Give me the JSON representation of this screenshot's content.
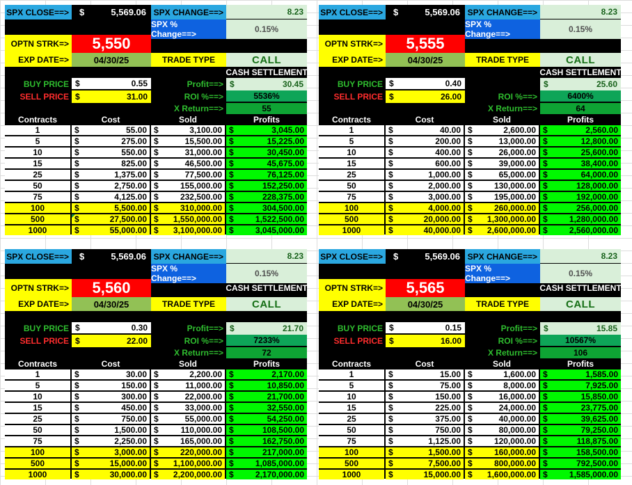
{
  "shared": {
    "dollar": "$",
    "spx_close_label": "SPX CLOSE==>",
    "spx_close_value": "5,569.06",
    "spx_change_label": "SPX CHANGE==>",
    "spx_change_value": "8.23",
    "spx_pct_label": "SPX % Change==>",
    "spx_pct_value": "0.15%",
    "optn_strk_label": "OPTN STRK=>",
    "exp_date_label": "EXP DATE=>",
    "exp_date": "04/30/25",
    "trade_type_label": "TRADE TYPE",
    "trade_type": "CALL",
    "cash_settlement": "CASH SETTLEMENT",
    "buy_price_label": "BUY PRICE",
    "sell_price_label": "SELL PRICE",
    "profit_label": "Profit==>",
    "roi_label": "ROI %==>",
    "xreturn_label": "X Return==>",
    "columns": [
      "Contracts",
      "Cost",
      "Sold",
      "Profits"
    ]
  },
  "colors": {
    "label_blue": "#2AA7E0",
    "pct_blue": "#0E62E0",
    "pale_green": "#D9EFD9",
    "strike_red": "#FF0000",
    "highlight_yellow": "#FFFF00",
    "date_olive": "#92C155",
    "roi_green": "#0EA558",
    "xreturn_green": "#0EA434",
    "profits_green": "#00F800",
    "buy_label_green": "#2FBE2F",
    "sell_label_red": "#FF2D2D"
  },
  "panels": [
    {
      "strike": "5,550",
      "buy_price": "0.55",
      "sell_price": "31.00",
      "profit": "30.45",
      "roi": "5536%",
      "x_return": "55",
      "rows": [
        {
          "n": "1",
          "cost": "55.00",
          "sold": "3,100.00",
          "profit": "3,045.00",
          "hl": false
        },
        {
          "n": "5",
          "cost": "275.00",
          "sold": "15,500.00",
          "profit": "15,225.00",
          "hl": false
        },
        {
          "n": "10",
          "cost": "550.00",
          "sold": "31,000.00",
          "profit": "30,450.00",
          "hl": false
        },
        {
          "n": "15",
          "cost": "825.00",
          "sold": "46,500.00",
          "profit": "45,675.00",
          "hl": false
        },
        {
          "n": "25",
          "cost": "1,375.00",
          "sold": "77,500.00",
          "profit": "76,125.00",
          "hl": false
        },
        {
          "n": "50",
          "cost": "2,750.00",
          "sold": "155,000.00",
          "profit": "152,250.00",
          "hl": false
        },
        {
          "n": "75",
          "cost": "4,125.00",
          "sold": "232,500.00",
          "profit": "228,375.00",
          "hl": false
        },
        {
          "n": "100",
          "cost": "5,500.00",
          "sold": "310,000.00",
          "profit": "304,500.00",
          "hl": true
        },
        {
          "n": "500",
          "cost": "27,500.00",
          "sold": "1,550,000.00",
          "profit": "1,522,500.00",
          "hl": true,
          "corner": true
        },
        {
          "n": "1000",
          "cost": "55,000.00",
          "sold": "3,100,000.00",
          "profit": "3,045,000.00",
          "hl": true
        }
      ]
    },
    {
      "strike": "5,555",
      "buy_price": "0.40",
      "sell_price": "26.00",
      "profit": "25.60",
      "roi": "6400%",
      "x_return": "64",
      "rows": [
        {
          "n": "1",
          "cost": "40.00",
          "sold": "2,600.00",
          "profit": "2,560.00",
          "hl": false
        },
        {
          "n": "5",
          "cost": "200.00",
          "sold": "13,000.00",
          "profit": "12,800.00",
          "hl": false
        },
        {
          "n": "10",
          "cost": "400.00",
          "sold": "26,000.00",
          "profit": "25,600.00",
          "hl": false
        },
        {
          "n": "15",
          "cost": "600.00",
          "sold": "39,000.00",
          "profit": "38,400.00",
          "hl": false
        },
        {
          "n": "25",
          "cost": "1,000.00",
          "sold": "65,000.00",
          "profit": "64,000.00",
          "hl": false
        },
        {
          "n": "50",
          "cost": "2,000.00",
          "sold": "130,000.00",
          "profit": "128,000.00",
          "hl": false
        },
        {
          "n": "75",
          "cost": "3,000.00",
          "sold": "195,000.00",
          "profit": "192,000.00",
          "hl": false
        },
        {
          "n": "100",
          "cost": "4,000.00",
          "sold": "260,000.00",
          "profit": "256,000.00",
          "hl": true
        },
        {
          "n": "500",
          "cost": "20,000.00",
          "sold": "1,300,000.00",
          "profit": "1,280,000.00",
          "hl": true
        },
        {
          "n": "1000",
          "cost": "40,000.00",
          "sold": "2,600,000.00",
          "profit": "2,560,000.00",
          "hl": true
        }
      ]
    },
    {
      "strike": "5,560",
      "buy_price": "0.30",
      "sell_price": "22.00",
      "profit": "21.70",
      "roi": "7233%",
      "x_return": "72",
      "rows": [
        {
          "n": "1",
          "cost": "30.00",
          "sold": "2,200.00",
          "profit": "2,170.00",
          "hl": false
        },
        {
          "n": "5",
          "cost": "150.00",
          "sold": "11,000.00",
          "profit": "10,850.00",
          "hl": false
        },
        {
          "n": "10",
          "cost": "300.00",
          "sold": "22,000.00",
          "profit": "21,700.00",
          "hl": false
        },
        {
          "n": "15",
          "cost": "450.00",
          "sold": "33,000.00",
          "profit": "32,550.00",
          "hl": false
        },
        {
          "n": "25",
          "cost": "750.00",
          "sold": "55,000.00",
          "profit": "54,250.00",
          "hl": false
        },
        {
          "n": "50",
          "cost": "1,500.00",
          "sold": "110,000.00",
          "profit": "108,500.00",
          "hl": false
        },
        {
          "n": "75",
          "cost": "2,250.00",
          "sold": "165,000.00",
          "profit": "162,750.00",
          "hl": false
        },
        {
          "n": "100",
          "cost": "3,000.00",
          "sold": "220,000.00",
          "profit": "217,000.00",
          "hl": true
        },
        {
          "n": "500",
          "cost": "15,000.00",
          "sold": "1,100,000.00",
          "profit": "1,085,000.00",
          "hl": true
        },
        {
          "n": "1000",
          "cost": "30,000.00",
          "sold": "2,200,000.00",
          "profit": "2,170,000.00",
          "hl": true
        }
      ]
    },
    {
      "strike": "5,565",
      "buy_price": "0.15",
      "sell_price": "16.00",
      "profit": "15.85",
      "roi": "10567%",
      "x_return": "106",
      "rows": [
        {
          "n": "1",
          "cost": "15.00",
          "sold": "1,600.00",
          "profit": "1,585.00",
          "hl": false
        },
        {
          "n": "5",
          "cost": "75.00",
          "sold": "8,000.00",
          "profit": "7,925.00",
          "hl": false
        },
        {
          "n": "10",
          "cost": "150.00",
          "sold": "16,000.00",
          "profit": "15,850.00",
          "hl": false
        },
        {
          "n": "15",
          "cost": "225.00",
          "sold": "24,000.00",
          "profit": "23,775.00",
          "hl": false
        },
        {
          "n": "25",
          "cost": "375.00",
          "sold": "40,000.00",
          "profit": "39,625.00",
          "hl": false
        },
        {
          "n": "50",
          "cost": "750.00",
          "sold": "80,000.00",
          "profit": "79,250.00",
          "hl": false
        },
        {
          "n": "75",
          "cost": "1,125.00",
          "sold": "120,000.00",
          "profit": "118,875.00",
          "hl": false
        },
        {
          "n": "100",
          "cost": "1,500.00",
          "sold": "160,000.00",
          "profit": "158,500.00",
          "hl": true
        },
        {
          "n": "500",
          "cost": "7,500.00",
          "sold": "800,000.00",
          "profit": "792,500.00",
          "hl": true
        },
        {
          "n": "1000",
          "cost": "15,000.00",
          "sold": "1,600,000.00",
          "profit": "1,585,000.00",
          "hl": true
        }
      ]
    }
  ]
}
